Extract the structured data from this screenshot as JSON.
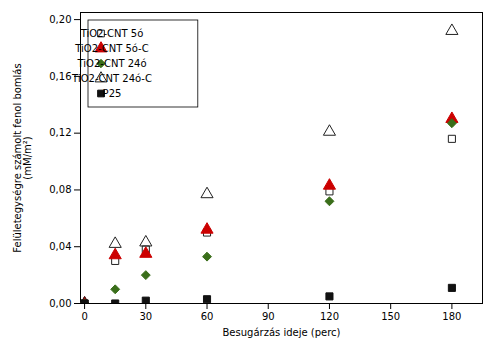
{
  "chart_data": {
    "type": "scatter",
    "xlabel": "Besugárzás ideje (perc)",
    "ylabel": "Felületegységre számolt fenol bomlás\n(mM/m²)",
    "xlim": [
      -2,
      195
    ],
    "ylim": [
      0.0,
      0.205
    ],
    "xticks": [
      0,
      30,
      60,
      90,
      120,
      150,
      180
    ],
    "yticks": [
      {
        "value": 0.0,
        "label": "0,00"
      },
      {
        "value": 0.04,
        "label": "0,04"
      },
      {
        "value": 0.08,
        "label": "0,08"
      },
      {
        "value": 0.12,
        "label": "0,12"
      },
      {
        "value": 0.16,
        "label": "0,16"
      },
      {
        "value": 0.2,
        "label": "0,20"
      }
    ],
    "x": [
      0,
      15,
      30,
      60,
      120,
      180
    ],
    "series": [
      {
        "name": "TiO2-CNT 5ó",
        "color": "#222222",
        "marker": "square_open",
        "values": [
          0.0,
          0.03,
          0.038,
          0.05,
          0.079,
          0.116
        ]
      },
      {
        "name": "TiO2-CNT 5ó-C",
        "color": "#cc0000",
        "marker": "triangle",
        "values": [
          0.0,
          0.034,
          0.035,
          0.052,
          0.083,
          0.13
        ]
      },
      {
        "name": "TiO2-CNT 24ó",
        "color": "#3a6e1a",
        "marker": "diamond",
        "values": [
          0.0,
          0.01,
          0.02,
          0.033,
          0.072,
          0.127
        ]
      },
      {
        "name": "TiO2-CNT 24ó-C",
        "color": "#222222",
        "marker": "triangle_open",
        "values": [
          0.0,
          0.042,
          0.043,
          0.077,
          0.121,
          0.192
        ]
      },
      {
        "name": "P25",
        "color": "#111111",
        "marker": "square",
        "values": [
          0.0,
          0.0,
          0.002,
          0.003,
          0.005,
          0.011
        ]
      }
    ],
    "legend": "upper left"
  }
}
